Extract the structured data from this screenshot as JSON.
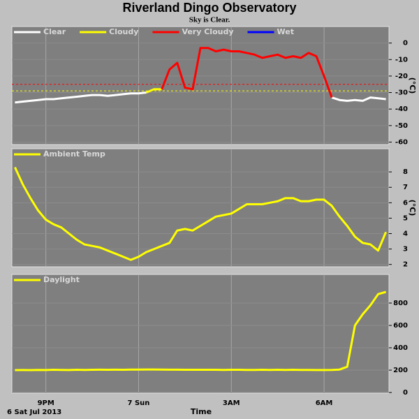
{
  "title": "Riverland Dingo Observatory",
  "subtitle": "Sky is Clear.",
  "x_axis": {
    "label": "Time",
    "date": "6 Sat Jul 2013",
    "xlim": [
      19.9,
      32.1
    ],
    "xticks": [
      {
        "value": 21,
        "label": "9PM"
      },
      {
        "value": 24,
        "label": "7 Sun"
      },
      {
        "value": 27,
        "label": "3AM"
      },
      {
        "value": 30,
        "label": "6AM"
      }
    ],
    "x": [
      20,
      20.25,
      20.5,
      20.75,
      21,
      21.25,
      21.5,
      21.75,
      22,
      22.25,
      22.5,
      22.75,
      23,
      23.25,
      23.5,
      23.75,
      24,
      24.25,
      24.5,
      24.75,
      25,
      25.25,
      25.5,
      25.75,
      26,
      26.25,
      26.5,
      26.75,
      27,
      27.25,
      27.5,
      27.75,
      28,
      28.25,
      28.5,
      28.75,
      29,
      29.25,
      29.5,
      29.75,
      30,
      30.25,
      30.5,
      30.75,
      31,
      31.25,
      31.5,
      31.75,
      32
    ]
  },
  "chart_data": [
    {
      "type": "line",
      "y_label": "(°C)",
      "ylim": [
        -61.5,
        10
      ],
      "yticks": [
        0,
        -10,
        -20,
        -30,
        -40,
        -50,
        -60
      ],
      "grid": true,
      "thresholds": [
        {
          "value": -25,
          "color": "#ff0000"
        },
        {
          "value": -29,
          "color": "#ffff00"
        }
      ],
      "series": [
        {
          "name": "Clear",
          "color": "#ffffff",
          "values": [
            -36,
            -35.5,
            -35,
            -34.5,
            -34,
            -34,
            -33.5,
            -33,
            -32.5,
            -32,
            -31.5,
            -31.5,
            -32,
            -31.5,
            -31,
            -30.5,
            -30.5,
            -30,
            null,
            null,
            null,
            null,
            null,
            null,
            null,
            null,
            null,
            null,
            null,
            null,
            null,
            null,
            null,
            null,
            null,
            null,
            null,
            null,
            null,
            null,
            null,
            -33,
            -34.5,
            -35,
            -34.5,
            -35,
            -33,
            -33.5,
            -34
          ]
        },
        {
          "name": "Cloudy",
          "color": "#ffff00",
          "values": [
            null,
            null,
            null,
            null,
            null,
            null,
            null,
            null,
            null,
            null,
            null,
            null,
            null,
            null,
            null,
            null,
            null,
            -30,
            -28,
            -28,
            null,
            null,
            -27,
            -28,
            null,
            null,
            null,
            null,
            null,
            null,
            null,
            null,
            null,
            null,
            null,
            null,
            null,
            null,
            null,
            null,
            null,
            null,
            null,
            null,
            null,
            null,
            null,
            null,
            null
          ]
        },
        {
          "name": "Very Cloudy",
          "color": "#ff0000",
          "values": [
            null,
            null,
            null,
            null,
            null,
            null,
            null,
            null,
            null,
            null,
            null,
            null,
            null,
            null,
            null,
            null,
            null,
            null,
            null,
            -28,
            -16,
            -12,
            -27,
            -28,
            -3,
            -3,
            -5,
            -4,
            -5,
            -5,
            -6,
            -7,
            -9,
            -8,
            -7,
            -9,
            -8,
            -9,
            -6,
            -8,
            -20,
            -33,
            null,
            null,
            null,
            null,
            null,
            null,
            null
          ]
        },
        {
          "name": "Wet",
          "color": "#0000ff",
          "values": [
            null,
            null,
            null,
            null,
            null,
            null,
            null,
            null,
            null,
            null,
            null,
            null,
            null,
            null,
            null,
            null,
            null,
            null,
            null,
            null,
            null,
            null,
            null,
            null,
            null,
            null,
            null,
            null,
            null,
            null,
            null,
            null,
            null,
            null,
            null,
            null,
            null,
            null,
            null,
            null,
            null,
            null,
            null,
            null,
            null,
            null,
            null,
            null,
            null
          ]
        }
      ]
    },
    {
      "type": "line",
      "y_label": "(°C)",
      "ylim": [
        1.85,
        9.5
      ],
      "yticks": [
        2,
        3,
        4,
        5,
        6,
        7,
        8
      ],
      "grid": true,
      "series": [
        {
          "name": "Ambient Temp",
          "color": "#ffff00",
          "values": [
            8.3,
            7.2,
            6.3,
            5.5,
            4.9,
            4.6,
            4.4,
            4.0,
            3.6,
            3.3,
            3.2,
            3.1,
            2.9,
            2.7,
            2.5,
            2.3,
            2.5,
            2.8,
            3.0,
            3.2,
            3.4,
            4.2,
            4.3,
            4.2,
            4.5,
            4.8,
            5.1,
            5.2,
            5.3,
            5.6,
            5.9,
            5.9,
            5.9,
            6.0,
            6.1,
            6.3,
            6.3,
            6.1,
            6.1,
            6.2,
            6.2,
            5.8,
            5.1,
            4.5,
            3.8,
            3.4,
            3.3,
            2.9,
            4.1
          ]
        }
      ]
    },
    {
      "type": "line",
      "ylim": [
        -6,
        1056
      ],
      "yticks": [
        0,
        200,
        400,
        600,
        800
      ],
      "grid": true,
      "series": [
        {
          "name": "Daylight",
          "color": "#ffff00",
          "values": [
            200,
            201,
            200,
            202,
            201,
            203,
            202,
            201,
            203,
            202,
            203,
            204,
            203,
            204,
            203,
            205,
            205,
            206,
            206,
            205,
            204,
            204,
            203,
            203,
            203,
            203,
            203,
            202,
            203,
            203,
            202,
            202,
            203,
            202,
            203,
            202,
            203,
            202,
            202,
            201,
            201,
            202,
            205,
            230,
            600,
            700,
            780,
            880,
            900
          ]
        }
      ]
    }
  ]
}
